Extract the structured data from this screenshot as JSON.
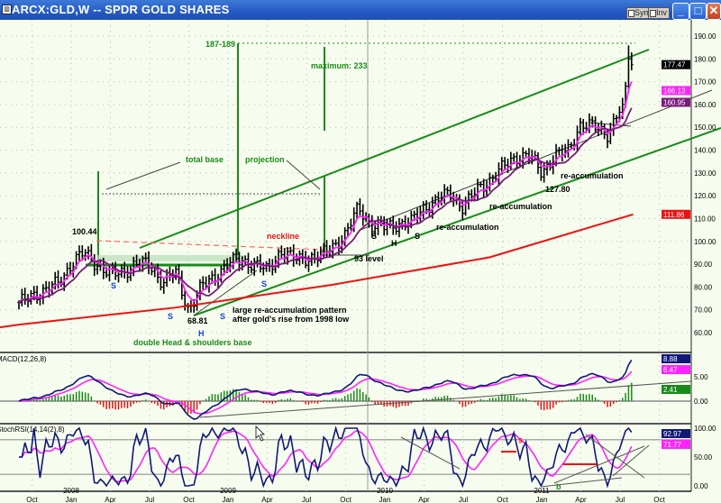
{
  "window": {
    "title": "ARCX:GLD,W -- SPDR GOLD SHARES",
    "buttons": {
      "sym": "Sym",
      "inv": "Inv",
      "minimize": "_",
      "maximize": "□",
      "close": "✕"
    }
  },
  "colors": {
    "bg": "#f6fdee",
    "green": "#1a8a1a",
    "red": "#ee1111",
    "magenta": "#ff22ff",
    "purple": "#7a1a7a",
    "navy": "#101878",
    "grid": "#b8b8b8"
  },
  "chart_data": [
    {
      "type": "ohlc",
      "name": "price",
      "title": "ARCX:GLD,W -- SPDR GOLD SHARES",
      "frequency": "weekly",
      "monthly_close_approx": {
        "start": "2007-09",
        "values": [
          72,
          77,
          78,
          82,
          90,
          95,
          90,
          85,
          87,
          90,
          90,
          82,
          86,
          70,
          80,
          85,
          90,
          92,
          90,
          87,
          96,
          92,
          93,
          93,
          98,
          103,
          115,
          107,
          106,
          108,
          108,
          115,
          118,
          121,
          115,
          122,
          127,
          132,
          137,
          138,
          130,
          138,
          139,
          152,
          150,
          147,
          158,
          177
        ]
      },
      "ylim": [
        55,
        195
      ],
      "y_ticks": [
        "190.00",
        "180.00",
        "170.00",
        "160.00",
        "150.00",
        "140.00",
        "130.00",
        "120.00",
        "110.00",
        "100.00",
        "90.00",
        "80.00",
        "70.00",
        "60.00"
      ],
      "last_values": [
        {
          "label": "177.47",
          "value": 177.47,
          "color": "#000000"
        },
        {
          "label": "166.13",
          "value": 166.13,
          "color": "#ff22ff"
        },
        {
          "label": "160.95",
          "value": 160.95,
          "color": "#7a1a7a"
        },
        {
          "label": "111.86",
          "value": 111.86,
          "color": "#ee1111"
        }
      ],
      "long_ma": {
        "color": "#ee1111",
        "start_value": 63.5,
        "points": [
          [
            0,
            63.5
          ],
          [
            12,
            71
          ],
          [
            24,
            81
          ],
          [
            36,
            93
          ],
          [
            47,
            111.86
          ]
        ]
      },
      "annotations": [
        {
          "text": "187-189",
          "color": "#1a8a1a"
        },
        {
          "text": "maximum:  233",
          "color": "#1a8a1a"
        },
        {
          "text": "total base",
          "color": "#1a8a1a"
        },
        {
          "text": "projection",
          "color": "#1a8a1a"
        },
        {
          "text": "100.44",
          "color": "#000000"
        },
        {
          "text": "neckline",
          "color": "#ee1111"
        },
        {
          "text": "93 level",
          "color": "#000000"
        },
        {
          "text": "68.81",
          "color": "#000000"
        },
        {
          "text": "large re-accumulation pattern",
          "color": "#000000"
        },
        {
          "text": "after gold's rise from 1998 low",
          "color": "#000000"
        },
        {
          "text": "double Head & shoulders base",
          "color": "#1a8a1a"
        },
        {
          "text": "re-accumulation",
          "color": "#000000"
        },
        {
          "text": "re-accumulation",
          "color": "#000000"
        },
        {
          "text": "re-accumulation",
          "color": "#000000"
        },
        {
          "text": "127.80",
          "color": "#000000"
        }
      ],
      "pattern_marks": [
        {
          "text": "S",
          "color": "#1144dd"
        },
        {
          "text": "S",
          "color": "#1144dd"
        },
        {
          "text": "H",
          "color": "#1144dd"
        },
        {
          "text": "S",
          "color": "#1144dd"
        },
        {
          "text": "S",
          "color": "#1144dd"
        },
        {
          "text": "S",
          "color": "#000000"
        },
        {
          "text": "H",
          "color": "#000000"
        },
        {
          "text": "S",
          "color": "#000000"
        }
      ]
    },
    {
      "type": "line",
      "name": "macd",
      "title": "MACD(12,26,8)",
      "y_ticks": [
        "5.00",
        "0.00"
      ],
      "last_values": [
        {
          "label": "8.88",
          "value": 8.88,
          "color": "#101878"
        },
        {
          "label": "6.47",
          "value": 6.47,
          "color": "#ff22ff"
        },
        {
          "label": "2.41",
          "value": 2.41,
          "color": "#1a8a1a"
        }
      ]
    },
    {
      "type": "line",
      "name": "stoch_rsi",
      "title": "StochRSI(14,14(2),8)",
      "y_ticks": [
        "100.00",
        "50.00",
        "0.00"
      ],
      "last_values": [
        {
          "label": "92.97",
          "value": 92.97,
          "color": "#101878"
        },
        {
          "label": "71.77",
          "value": 71.77,
          "color": "#ff22ff"
        }
      ],
      "annotations": [
        {
          "text": "s",
          "color": "#ee1111"
        },
        {
          "text": "b",
          "color": "#1a8a1a"
        }
      ]
    }
  ],
  "x_axis": {
    "labels": [
      {
        "month": "Oct",
        "year": ""
      },
      {
        "month": "Jan",
        "year": "2008"
      },
      {
        "month": "Apr",
        "year": ""
      },
      {
        "month": "Jul",
        "year": ""
      },
      {
        "month": "Oct",
        "year": ""
      },
      {
        "month": "Jan",
        "year": "2009"
      },
      {
        "month": "Apr",
        "year": ""
      },
      {
        "month": "Jul",
        "year": ""
      },
      {
        "month": "Oct",
        "year": ""
      },
      {
        "month": "Jan",
        "year": "2010"
      },
      {
        "month": "Apr",
        "year": ""
      },
      {
        "month": "Jul",
        "year": ""
      },
      {
        "month": "Oct",
        "year": ""
      },
      {
        "month": "Jan",
        "year": "2011"
      },
      {
        "month": "Apr",
        "year": ""
      },
      {
        "month": "Jul",
        "year": ""
      },
      {
        "month": "Oct",
        "year": ""
      }
    ]
  }
}
